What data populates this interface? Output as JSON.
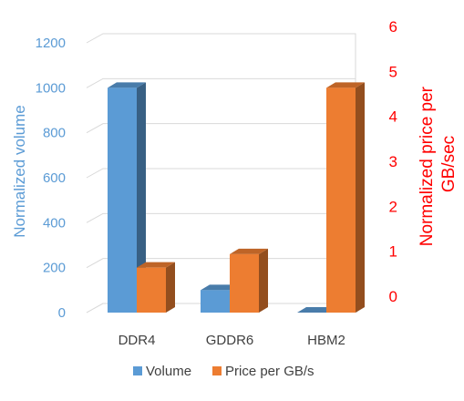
{
  "chart_data": {
    "type": "bar",
    "categories": [
      "DDR4",
      "GDDR6",
      "HBM2"
    ],
    "series": [
      {
        "name": "Volume",
        "axis": "left",
        "color": "#5b9bd5",
        "values": [
          1000,
          100,
          0
        ]
      },
      {
        "name": "Price per GB/s",
        "axis": "right",
        "color": "#ed7d31",
        "values": [
          1,
          1.3,
          5
        ]
      }
    ],
    "y_left": {
      "label": "Normalized volume",
      "ticks": [
        0,
        200,
        400,
        600,
        800,
        1000,
        1200
      ],
      "ylim": [
        0,
        1200
      ],
      "color": "#5b9bd5"
    },
    "y_right": {
      "label_lines": [
        "Normalized price per",
        "GB/sec"
      ],
      "ticks": [
        0,
        1,
        2,
        3,
        4,
        5,
        6
      ],
      "ylim": [
        0,
        6
      ],
      "color": "#ff0000"
    },
    "grid": true,
    "legend_placement": "bottom",
    "style": "3d-clustered-column"
  }
}
